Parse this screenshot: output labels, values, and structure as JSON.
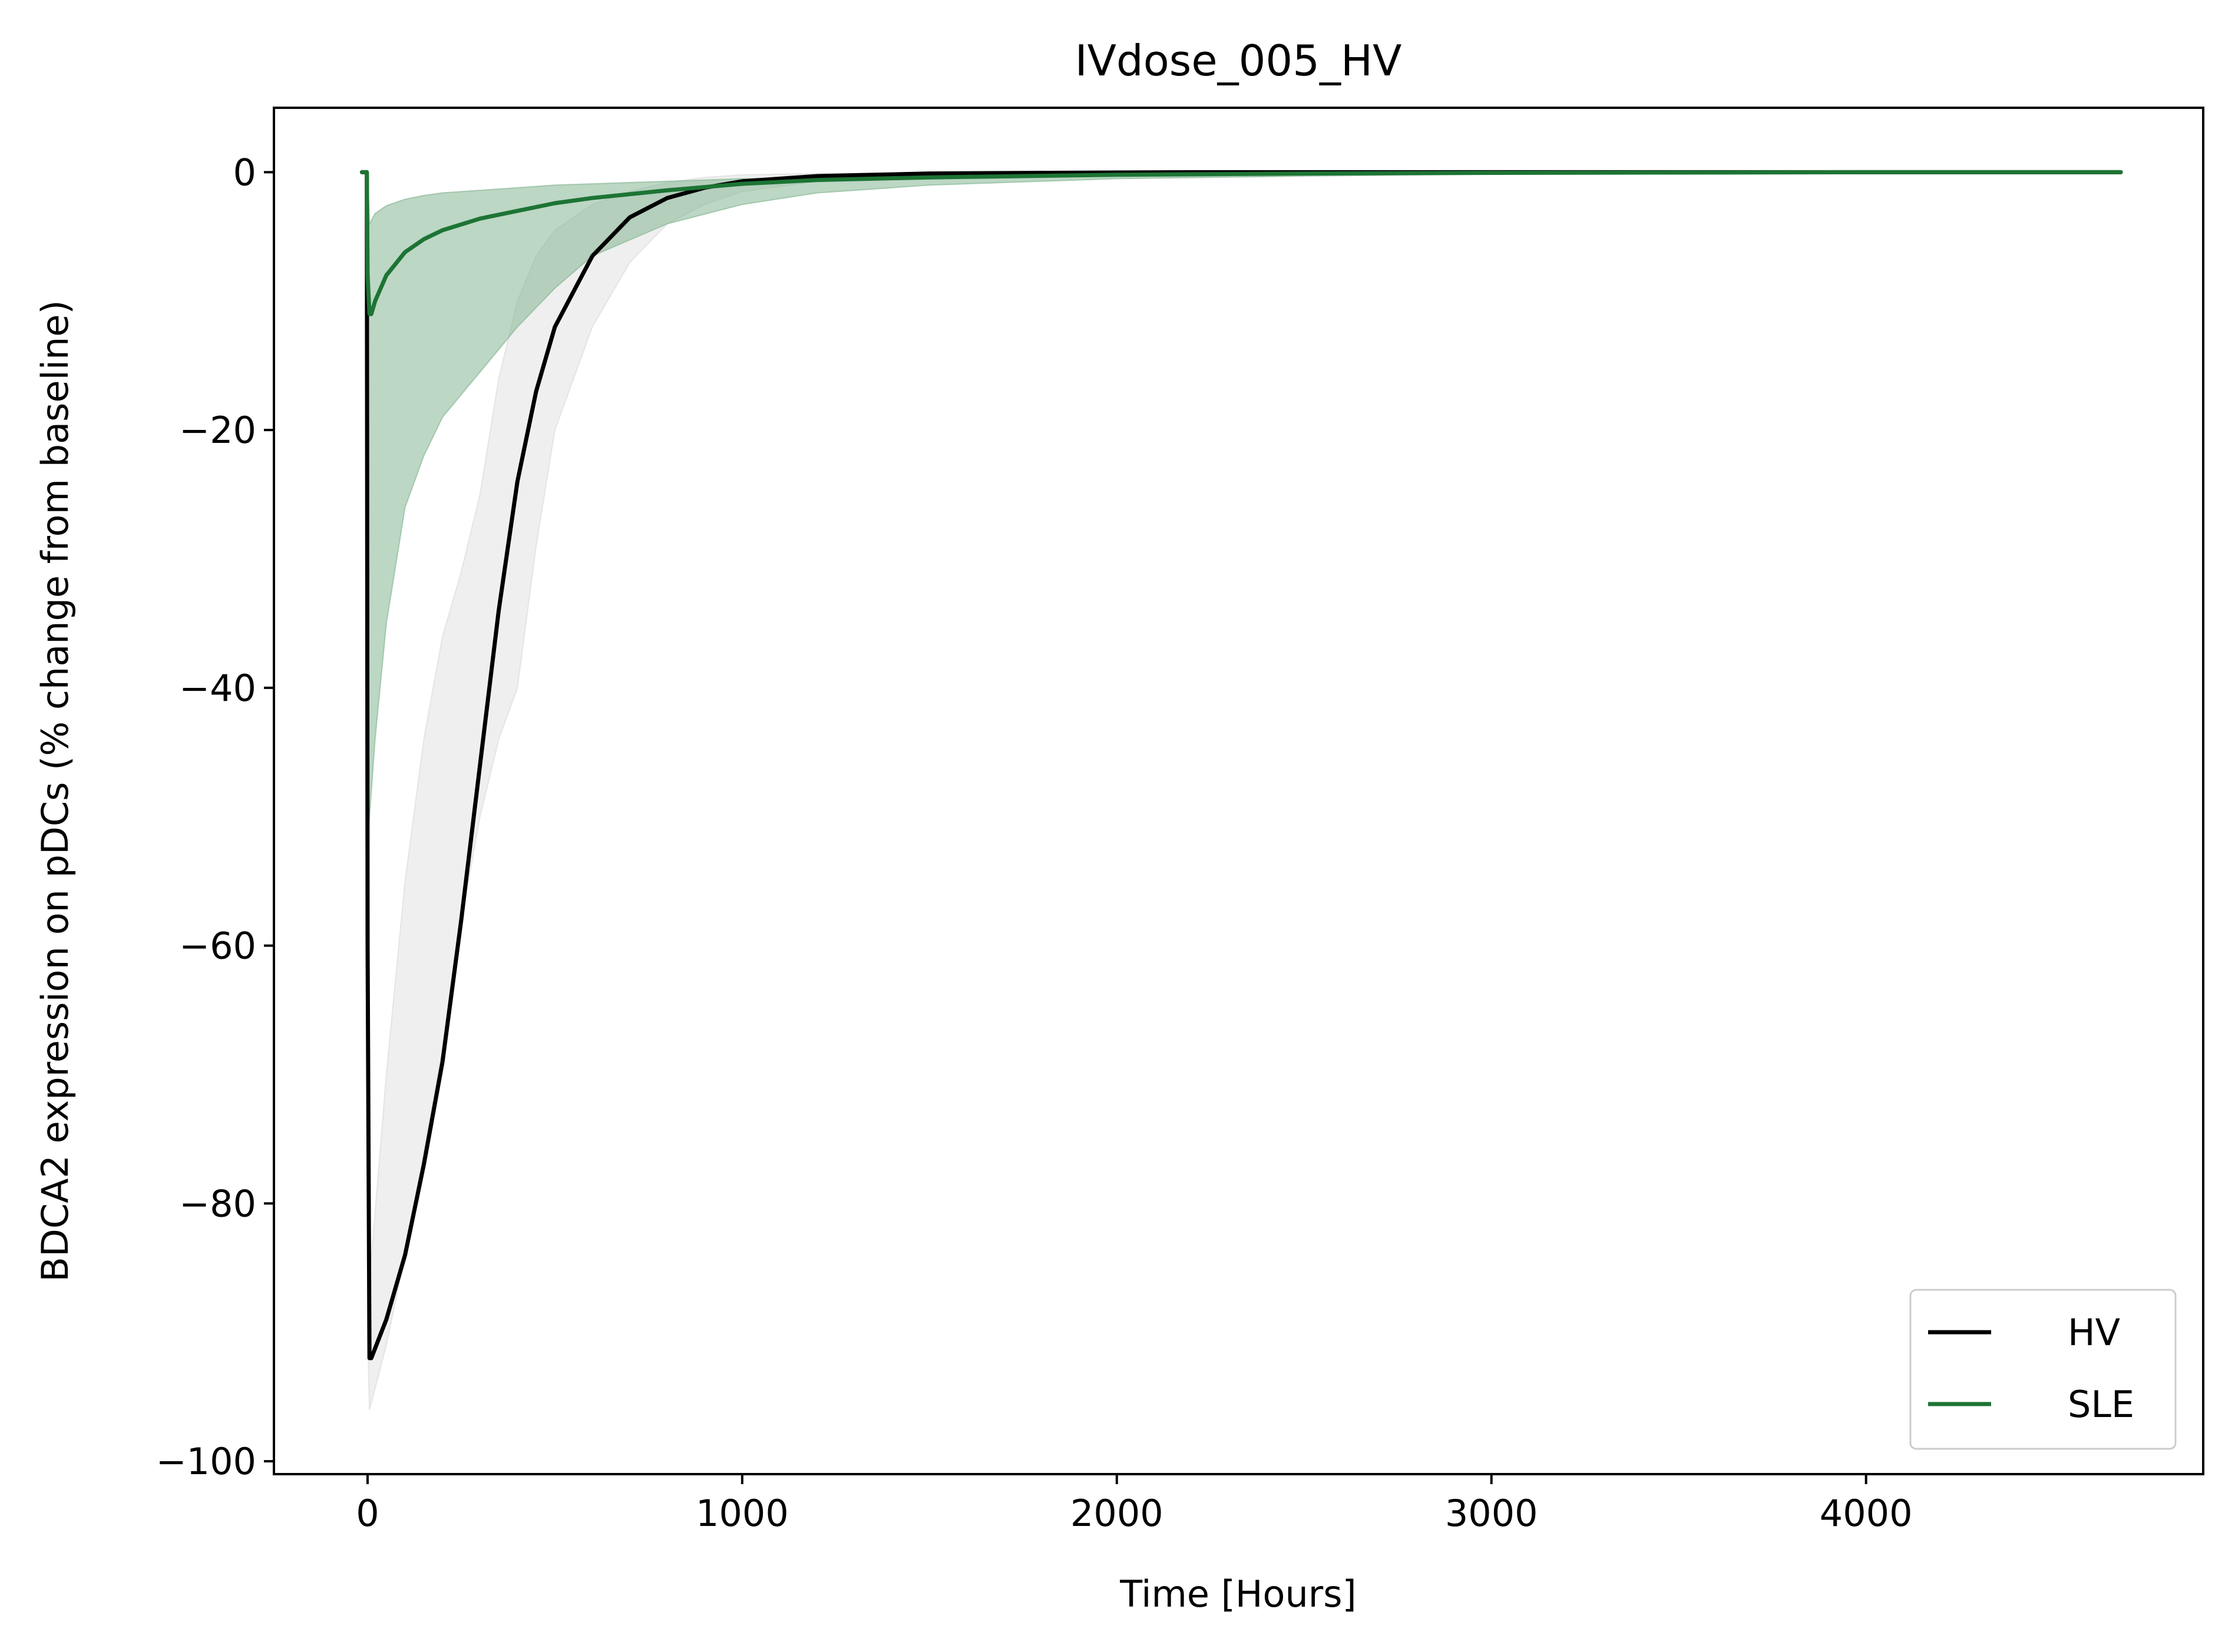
{
  "chart_data": {
    "type": "line",
    "title": "IVdose_005_HV",
    "xlabel": "Time [Hours]",
    "ylabel": "BDCA2 expression on pDCs (% change from baseline)",
    "xlim": [
      -250,
      4900
    ],
    "ylim": [
      -101,
      5
    ],
    "xticks": [
      0,
      1000,
      2000,
      3000,
      4000
    ],
    "xtick_labels": [
      "0",
      "1000",
      "2000",
      "3000",
      "4000"
    ],
    "yticks": [
      0,
      -20,
      -40,
      -60,
      -80,
      -100
    ],
    "ytick_labels": [
      "0",
      "−20",
      "−40",
      "−60",
      "−80",
      "−100"
    ],
    "grid": false,
    "legend_position": "lower-right",
    "series": [
      {
        "name": "HV",
        "color": "#000000",
        "x": [
          -15,
          -2,
          0,
          5,
          10,
          50,
          100,
          150,
          200,
          250,
          300,
          350,
          400,
          450,
          500,
          600,
          700,
          800,
          900,
          1000,
          1200,
          1500,
          1800,
          2200,
          2600,
          3000,
          3500,
          4000,
          4500,
          4680
        ],
        "y": [
          0,
          0,
          -60,
          -92,
          -92,
          -89,
          -84,
          -77,
          -69,
          -58,
          -46,
          -34,
          -24,
          -17,
          -12,
          -6.5,
          -3.5,
          -2,
          -1.2,
          -0.7,
          -0.3,
          -0.1,
          -0.05,
          0,
          0,
          0,
          0,
          0,
          0,
          0
        ],
        "band_x": [
          0,
          5,
          50,
          100,
          150,
          200,
          250,
          300,
          350,
          400,
          450,
          500,
          600,
          700,
          800,
          900,
          1000,
          1200,
          1500,
          1800,
          2200,
          2600,
          3000,
          3500,
          4000,
          4500,
          4680
        ],
        "band_lower": [
          -90,
          -96,
          -91,
          -84,
          -76,
          -68,
          -58,
          -50,
          -44,
          -40,
          -29,
          -20,
          -12,
          -7,
          -4,
          -2.5,
          -1.5,
          -0.7,
          -0.3,
          -0.1,
          -0.05,
          0,
          0,
          0,
          0,
          0,
          0
        ],
        "band_upper": [
          -50,
          -86,
          -70,
          -55,
          -44,
          -36,
          -31,
          -25,
          -16,
          -10,
          -6.5,
          -4.5,
          -2.5,
          -1.5,
          -0.8,
          -0.4,
          -0.2,
          -0.1,
          -0.05,
          0,
          0,
          0,
          0,
          0,
          0,
          0,
          0
        ],
        "band_color": "#d9d9d9"
      },
      {
        "name": "SLE",
        "color": "#1d7434",
        "x": [
          -15,
          -2,
          0,
          5,
          10,
          20,
          50,
          100,
          150,
          200,
          300,
          400,
          500,
          600,
          800,
          1000,
          1200,
          1500,
          2000,
          2500,
          3000,
          4000,
          4680
        ],
        "y": [
          0,
          0,
          -8,
          -11,
          -11,
          -10,
          -8,
          -6.2,
          -5.2,
          -4.5,
          -3.6,
          -3,
          -2.4,
          -2,
          -1.4,
          -0.9,
          -0.6,
          -0.4,
          -0.2,
          -0.1,
          -0.05,
          0,
          0
        ],
        "band_x": [
          0,
          5,
          20,
          50,
          100,
          150,
          200,
          300,
          400,
          500,
          600,
          800,
          1000,
          1200,
          1500,
          2000,
          2500,
          3000,
          4000,
          4680
        ],
        "band_lower": [
          -52,
          -50,
          -44,
          -35,
          -26,
          -22,
          -19,
          -15.5,
          -12,
          -9,
          -6.5,
          -4,
          -2.5,
          -1.6,
          -1,
          -0.5,
          -0.3,
          -0.15,
          0,
          0
        ],
        "band_upper": [
          0,
          -4,
          -3.2,
          -2.6,
          -2.1,
          -1.8,
          -1.6,
          -1.4,
          -1.2,
          -1,
          -0.9,
          -0.7,
          -0.5,
          -0.4,
          -0.3,
          -0.2,
          -0.1,
          -0.05,
          0,
          0
        ],
        "band_color": "#7fb38d"
      }
    ]
  }
}
